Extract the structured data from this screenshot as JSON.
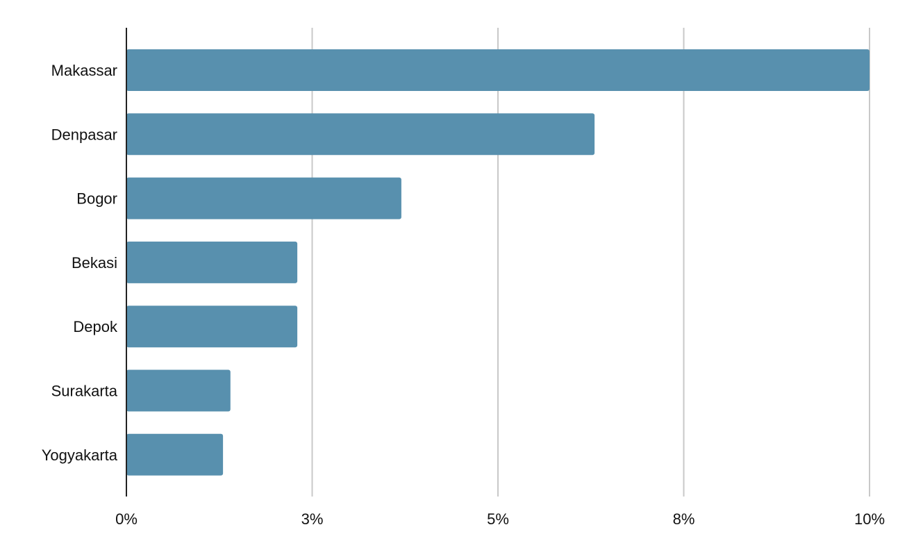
{
  "chart_data": {
    "type": "bar",
    "orientation": "horizontal",
    "categories": [
      "Makassar",
      "Denpasar",
      "Bogor",
      "Bekasi",
      "Depok",
      "Surakarta",
      "Yogyakarta"
    ],
    "values": [
      10.0,
      6.3,
      3.7,
      2.3,
      2.3,
      1.4,
      1.3
    ],
    "value_unit": "%",
    "x_ticks": [
      "0%",
      "3%",
      "5%",
      "8%",
      "10%"
    ],
    "xlim": [
      0,
      10
    ],
    "title": "",
    "xlabel": "",
    "ylabel": "",
    "grid": "vertical",
    "legend": "none",
    "colors": {
      "bar": "#5890ae",
      "grid": "#c8c8c8",
      "axis": "#222222",
      "text": "#111111"
    }
  }
}
